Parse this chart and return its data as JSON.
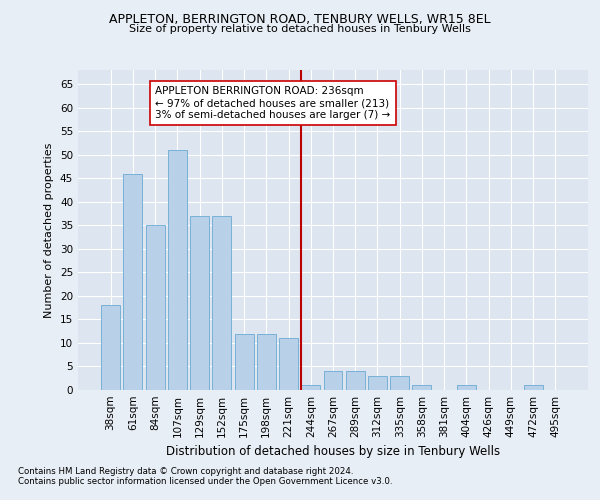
{
  "title": "APPLETON, BERRINGTON ROAD, TENBURY WELLS, WR15 8EL",
  "subtitle": "Size of property relative to detached houses in Tenbury Wells",
  "xlabel": "Distribution of detached houses by size in Tenbury Wells",
  "ylabel": "Number of detached properties",
  "footnote1": "Contains HM Land Registry data © Crown copyright and database right 2024.",
  "footnote2": "Contains public sector information licensed under the Open Government Licence v3.0.",
  "categories": [
    "38sqm",
    "61sqm",
    "84sqm",
    "107sqm",
    "129sqm",
    "152sqm",
    "175sqm",
    "198sqm",
    "221sqm",
    "244sqm",
    "267sqm",
    "289sqm",
    "312sqm",
    "335sqm",
    "358sqm",
    "381sqm",
    "404sqm",
    "426sqm",
    "449sqm",
    "472sqm",
    "495sqm"
  ],
  "values": [
    18,
    46,
    35,
    51,
    37,
    37,
    12,
    12,
    11,
    1,
    4,
    4,
    3,
    3,
    1,
    0,
    1,
    0,
    0,
    1,
    0
  ],
  "bar_color": "#b8d0e8",
  "bar_edge_color": "#6aaad4",
  "background_color": "#dde6f0",
  "fig_background_color": "#e8eef5",
  "grid_color": "#ffffff",
  "vline_x_index": 8.55,
  "vline_color": "#bb0000",
  "annotation_box_text": "APPLETON BERRINGTON ROAD: 236sqm\n← 97% of detached houses are smaller (213)\n3% of semi-detached houses are larger (7) →",
  "ylim": [
    0,
    68
  ],
  "yticks": [
    0,
    5,
    10,
    15,
    20,
    25,
    30,
    35,
    40,
    45,
    50,
    55,
    60,
    65
  ]
}
